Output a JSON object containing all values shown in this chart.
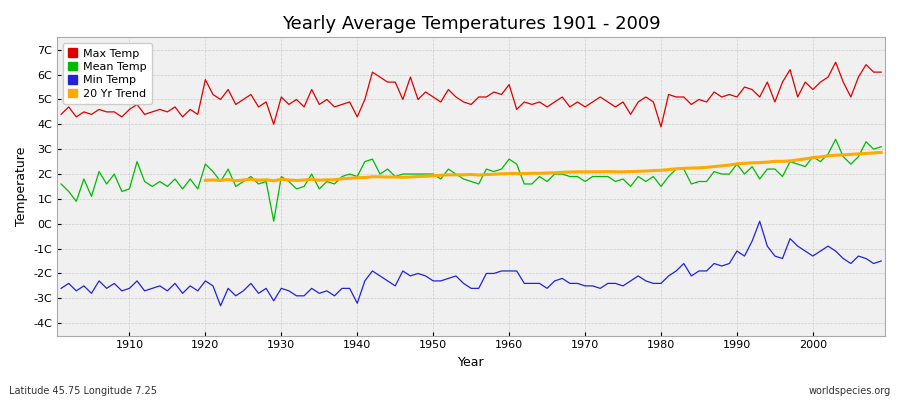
{
  "title": "Yearly Average Temperatures 1901 - 2009",
  "xlabel": "Year",
  "ylabel": "Temperature",
  "subtitle_left": "Latitude 45.75 Longitude 7.25",
  "subtitle_right": "worldspecies.org",
  "years": [
    1901,
    1902,
    1903,
    1904,
    1905,
    1906,
    1907,
    1908,
    1909,
    1910,
    1911,
    1912,
    1913,
    1914,
    1915,
    1916,
    1917,
    1918,
    1919,
    1920,
    1921,
    1922,
    1923,
    1924,
    1925,
    1926,
    1927,
    1928,
    1929,
    1930,
    1931,
    1932,
    1933,
    1934,
    1935,
    1936,
    1937,
    1938,
    1939,
    1940,
    1941,
    1942,
    1943,
    1944,
    1945,
    1946,
    1947,
    1948,
    1949,
    1950,
    1951,
    1952,
    1953,
    1954,
    1955,
    1956,
    1957,
    1958,
    1959,
    1960,
    1961,
    1962,
    1963,
    1964,
    1965,
    1966,
    1967,
    1968,
    1969,
    1970,
    1971,
    1972,
    1973,
    1974,
    1975,
    1976,
    1977,
    1978,
    1979,
    1980,
    1981,
    1982,
    1983,
    1984,
    1985,
    1986,
    1987,
    1988,
    1989,
    1990,
    1991,
    1992,
    1993,
    1994,
    1995,
    1996,
    1997,
    1998,
    1999,
    2000,
    2001,
    2002,
    2003,
    2004,
    2005,
    2006,
    2007,
    2008,
    2009
  ],
  "max_temp": [
    4.4,
    4.7,
    4.3,
    4.5,
    4.4,
    4.6,
    4.5,
    4.5,
    4.3,
    4.6,
    4.8,
    4.4,
    4.5,
    4.6,
    4.5,
    4.7,
    4.3,
    4.6,
    4.4,
    5.8,
    5.2,
    5.0,
    5.4,
    4.8,
    5.0,
    5.2,
    4.7,
    4.9,
    4.0,
    5.1,
    4.8,
    5.0,
    4.7,
    5.4,
    4.8,
    5.0,
    4.7,
    4.8,
    4.9,
    4.3,
    5.0,
    6.1,
    5.9,
    5.7,
    5.7,
    5.0,
    5.9,
    5.0,
    5.3,
    5.1,
    4.9,
    5.4,
    5.1,
    4.9,
    4.8,
    5.1,
    5.1,
    5.3,
    5.2,
    5.6,
    4.6,
    4.9,
    4.8,
    4.9,
    4.7,
    4.9,
    5.1,
    4.7,
    4.9,
    4.7,
    4.9,
    5.1,
    4.9,
    4.7,
    4.9,
    4.4,
    4.9,
    5.1,
    4.9,
    3.9,
    5.2,
    5.1,
    5.1,
    4.8,
    5.0,
    4.9,
    5.3,
    5.1,
    5.2,
    5.1,
    5.5,
    5.4,
    5.1,
    5.7,
    4.9,
    5.7,
    6.2,
    5.1,
    5.7,
    5.4,
    5.7,
    5.9,
    6.5,
    5.7,
    5.1,
    5.9,
    6.4,
    6.1,
    6.1
  ],
  "mean_temp": [
    1.6,
    1.3,
    0.9,
    1.8,
    1.1,
    2.1,
    1.6,
    2.0,
    1.3,
    1.4,
    2.5,
    1.7,
    1.5,
    1.7,
    1.5,
    1.8,
    1.4,
    1.8,
    1.4,
    2.4,
    2.1,
    1.7,
    2.2,
    1.5,
    1.7,
    1.9,
    1.6,
    1.7,
    0.1,
    1.9,
    1.7,
    1.4,
    1.5,
    2.0,
    1.4,
    1.7,
    1.6,
    1.9,
    2.0,
    1.9,
    2.5,
    2.6,
    2.0,
    2.2,
    1.9,
    2.0,
    2.0,
    2.0,
    2.0,
    2.0,
    1.8,
    2.2,
    2.0,
    1.8,
    1.7,
    1.6,
    2.2,
    2.1,
    2.2,
    2.6,
    2.4,
    1.6,
    1.6,
    1.9,
    1.7,
    2.0,
    2.0,
    1.9,
    1.9,
    1.7,
    1.9,
    1.9,
    1.9,
    1.7,
    1.8,
    1.5,
    1.9,
    1.7,
    1.9,
    1.5,
    1.9,
    2.2,
    2.2,
    1.6,
    1.7,
    1.7,
    2.1,
    2.0,
    2.0,
    2.4,
    2.0,
    2.3,
    1.8,
    2.2,
    2.2,
    1.9,
    2.5,
    2.4,
    2.3,
    2.7,
    2.5,
    2.8,
    3.4,
    2.7,
    2.4,
    2.7,
    3.3,
    3.0,
    3.1
  ],
  "min_temp": [
    -2.6,
    -2.4,
    -2.7,
    -2.5,
    -2.8,
    -2.3,
    -2.6,
    -2.4,
    -2.7,
    -2.6,
    -2.3,
    -2.7,
    -2.6,
    -2.5,
    -2.7,
    -2.4,
    -2.8,
    -2.5,
    -2.7,
    -2.3,
    -2.5,
    -3.3,
    -2.6,
    -2.9,
    -2.7,
    -2.4,
    -2.8,
    -2.6,
    -3.1,
    -2.6,
    -2.7,
    -2.9,
    -2.9,
    -2.6,
    -2.8,
    -2.7,
    -2.9,
    -2.6,
    -2.6,
    -3.2,
    -2.3,
    -1.9,
    -2.1,
    -2.3,
    -2.5,
    -1.9,
    -2.1,
    -2.0,
    -2.1,
    -2.3,
    -2.3,
    -2.2,
    -2.1,
    -2.4,
    -2.6,
    -2.6,
    -2.0,
    -2.0,
    -1.9,
    -1.9,
    -1.9,
    -2.4,
    -2.4,
    -2.4,
    -2.6,
    -2.3,
    -2.2,
    -2.4,
    -2.4,
    -2.5,
    -2.5,
    -2.6,
    -2.4,
    -2.4,
    -2.5,
    -2.3,
    -2.1,
    -2.3,
    -2.4,
    -2.4,
    -2.1,
    -1.9,
    -1.6,
    -2.1,
    -1.9,
    -1.9,
    -1.6,
    -1.7,
    -1.6,
    -1.1,
    -1.3,
    -0.7,
    0.1,
    -0.9,
    -1.3,
    -1.4,
    -0.6,
    -0.9,
    -1.1,
    -1.3,
    -1.1,
    -0.9,
    -1.1,
    -1.4,
    -1.6,
    -1.3,
    -1.4,
    -1.6,
    -1.5
  ],
  "trend_years": [
    1920,
    1921,
    1922,
    1923,
    1924,
    1925,
    1926,
    1927,
    1928,
    1929,
    1930,
    1931,
    1932,
    1933,
    1934,
    1935,
    1936,
    1937,
    1938,
    1939,
    1940,
    1941,
    1942,
    1943,
    1944,
    1945,
    1946,
    1947,
    1948,
    1949,
    1950,
    1951,
    1952,
    1953,
    1954,
    1955,
    1956,
    1957,
    1958,
    1959,
    1960,
    1961,
    1962,
    1963,
    1964,
    1965,
    1966,
    1967,
    1968,
    1969,
    1970,
    1971,
    1972,
    1973,
    1974,
    1975,
    1976,
    1977,
    1978,
    1979,
    1980,
    1981,
    1982,
    1983,
    1984,
    1985,
    1986,
    1987,
    1988,
    1989,
    1990,
    1991,
    1992,
    1993,
    1994,
    1995,
    1996,
    1997,
    1998,
    1999,
    2000,
    2001,
    2002,
    2003,
    2004,
    2005,
    2006,
    2007,
    2008,
    2009
  ],
  "trend_values": [
    1.75,
    1.76,
    1.74,
    1.78,
    1.73,
    1.76,
    1.79,
    1.75,
    1.77,
    1.73,
    1.79,
    1.76,
    1.74,
    1.76,
    1.79,
    1.75,
    1.77,
    1.77,
    1.81,
    1.83,
    1.85,
    1.86,
    1.89,
    1.89,
    1.88,
    1.88,
    1.87,
    1.88,
    1.9,
    1.91,
    1.93,
    1.95,
    1.97,
    1.97,
    1.97,
    1.98,
    1.96,
    1.98,
    1.99,
    2.01,
    2.02,
    2.02,
    2.02,
    2.03,
    2.03,
    2.04,
    2.05,
    2.07,
    2.08,
    2.09,
    2.09,
    2.09,
    2.09,
    2.1,
    2.09,
    2.09,
    2.1,
    2.11,
    2.12,
    2.14,
    2.15,
    2.18,
    2.21,
    2.23,
    2.24,
    2.25,
    2.27,
    2.3,
    2.33,
    2.36,
    2.41,
    2.43,
    2.45,
    2.46,
    2.48,
    2.51,
    2.51,
    2.53,
    2.57,
    2.61,
    2.66,
    2.69,
    2.73,
    2.76,
    2.77,
    2.79,
    2.81,
    2.83,
    2.85,
    2.87
  ],
  "max_color": "#dd0000",
  "mean_color": "#00bb00",
  "min_color": "#2222dd",
  "trend_color": "#ffaa00",
  "fig_bg_color": "#ffffff",
  "plot_bg_color": "#f0f0f0",
  "ylim": [
    -4.5,
    7.5
  ],
  "yticks": [
    -4,
    -3,
    -2,
    -1,
    0,
    1,
    2,
    3,
    4,
    5,
    6,
    7
  ],
  "ytick_labels": [
    "-4C",
    "-3C",
    "-2C",
    "-1C",
    "0C",
    "1C",
    "2C",
    "3C",
    "4C",
    "5C",
    "6C",
    "7C"
  ],
  "xlim": [
    1900.5,
    2009.5
  ],
  "xticks": [
    1910,
    1920,
    1930,
    1940,
    1950,
    1960,
    1970,
    1980,
    1990,
    2000
  ],
  "legend_labels": [
    "Max Temp",
    "Mean Temp",
    "Min Temp",
    "20 Yr Trend"
  ],
  "title_fontsize": 13,
  "axis_label_fontsize": 9,
  "tick_fontsize": 8,
  "legend_fontsize": 8
}
